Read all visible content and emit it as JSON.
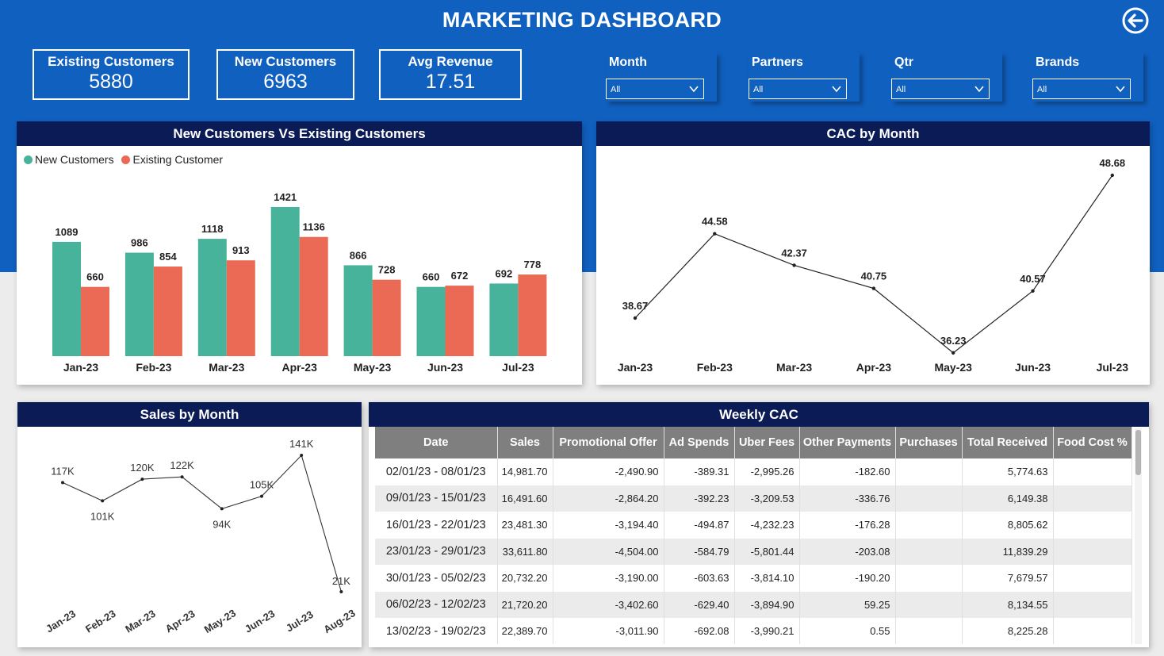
{
  "dashboard": {
    "title": "MARKETING DASHBOARD"
  },
  "kpis": [
    {
      "label": "Existing Customers",
      "value": "5880"
    },
    {
      "label": "New Customers",
      "value": "6963"
    },
    {
      "label": "Avg Revenue",
      "value": "17.51"
    }
  ],
  "slicers": [
    {
      "label": "Month",
      "value": "All"
    },
    {
      "label": "Partners",
      "value": "All"
    },
    {
      "label": "Qtr",
      "value": "All"
    },
    {
      "label": "Brands",
      "value": "All"
    }
  ],
  "colors": {
    "banner": "#1060c0",
    "panel_header": "#0a1b55",
    "new_customers": "#47b39a",
    "existing_customers": "#eb6a55"
  },
  "customers_panel": {
    "title": "New Customers Vs Existing Customers",
    "legend_new": "New Customers",
    "legend_existing": "Existing Customer"
  },
  "cac_panel": {
    "title": "CAC by Month"
  },
  "sales_panel": {
    "title": "Sales by Month"
  },
  "weekly_cac": {
    "title": "Weekly CAC",
    "columns": [
      "Date",
      "Sales",
      "Promotional Offer",
      "Ad Spends",
      "Uber Fees",
      "Other Payments",
      "Purchases",
      "Total Received",
      "Food Cost %"
    ],
    "rows": [
      [
        "02/01/23 - 08/01/23",
        "14,981.70",
        "-2,490.90",
        "-389.31",
        "-2,995.26",
        "-182.60",
        "",
        "5,774.63",
        ""
      ],
      [
        "09/01/23 - 15/01/23",
        "16,491.60",
        "-2,864.20",
        "-392.23",
        "-3,209.53",
        "-336.76",
        "",
        "6,149.38",
        ""
      ],
      [
        "16/01/23 - 22/01/23",
        "23,481.30",
        "-3,194.40",
        "-494.87",
        "-4,232.23",
        "-176.28",
        "",
        "8,805.62",
        ""
      ],
      [
        "23/01/23 - 29/01/23",
        "33,611.80",
        "-4,504.00",
        "-584.79",
        "-5,801.44",
        "-203.08",
        "",
        "11,839.29",
        ""
      ],
      [
        "30/01/23 - 05/02/23",
        "20,732.20",
        "-3,190.00",
        "-603.63",
        "-3,814.10",
        "-190.20",
        "",
        "7,679.57",
        ""
      ],
      [
        "06/02/23 - 12/02/23",
        "21,720.20",
        "-3,402.60",
        "-629.40",
        "-3,894.90",
        "59.25",
        "",
        "8,134.55",
        ""
      ],
      [
        "13/02/23 - 19/02/23",
        "22,389.70",
        "-3,011.90",
        "-692.08",
        "-3,990.21",
        "0.55",
        "",
        "8,225.28",
        ""
      ]
    ]
  },
  "chart_data": [
    {
      "type": "bar",
      "title": "New Customers Vs Existing Customers",
      "categories": [
        "Jan-23",
        "Feb-23",
        "Mar-23",
        "Apr-23",
        "May-23",
        "Jun-23",
        "Jul-23"
      ],
      "series": [
        {
          "name": "New Customers",
          "values": [
            1089,
            986,
            1118,
            1421,
            866,
            660,
            692
          ]
        },
        {
          "name": "Existing Customer",
          "values": [
            660,
            854,
            913,
            1136,
            728,
            672,
            778
          ]
        }
      ],
      "legend": "top-left",
      "grid": false
    },
    {
      "type": "line",
      "title": "CAC by Month",
      "x": [
        "Jan-23",
        "Feb-23",
        "Mar-23",
        "Apr-23",
        "May-23",
        "Jun-23",
        "Jul-23"
      ],
      "values": [
        38.67,
        44.58,
        42.37,
        40.75,
        36.23,
        40.57,
        48.68
      ],
      "grid": false
    },
    {
      "type": "line",
      "title": "Sales by Month",
      "x": [
        "Jan-23",
        "Feb-23",
        "Mar-23",
        "Apr-23",
        "May-23",
        "Jun-23",
        "Jul-23",
        "Aug-23"
      ],
      "values": [
        117000,
        101000,
        120000,
        122000,
        94000,
        105000,
        141000,
        21000
      ],
      "value_labels": [
        "117K",
        "101K",
        "120K",
        "122K",
        "94K",
        "105K",
        "141K",
        "21K"
      ],
      "grid": false
    }
  ]
}
